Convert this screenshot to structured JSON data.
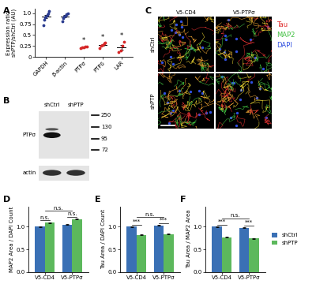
{
  "chart_data": [
    {
      "type": "scatter",
      "panel_label": "A",
      "y_label": "Expression ratio\nshPTP/shCtrl (AU)",
      "categories": [
        "GAPDH",
        "β-actin",
        "PTPσ",
        "PTPδ",
        "LAR"
      ],
      "points": [
        [
          0.72,
          0.85,
          0.9,
          0.93,
          0.97,
          1.0,
          1.05
        ],
        [
          0.82,
          0.88,
          0.92,
          0.95,
          0.98,
          1.0
        ],
        [
          0.2,
          0.21,
          0.22,
          0.23,
          0.24
        ],
        [
          0.2,
          0.25,
          0.27,
          0.3,
          0.32
        ],
        [
          0.1,
          0.15,
          0.25,
          0.35
        ]
      ],
      "means": [
        0.92,
        0.93,
        0.22,
        0.27,
        0.22
      ],
      "errors": [
        0.04,
        0.03,
        0.01,
        0.02,
        0.06
      ],
      "colors": [
        "#2a3b8f",
        "#2a3b8f",
        "#d62728",
        "#d62728",
        "#d62728"
      ],
      "marks": [
        null,
        null,
        "*",
        "*",
        "*"
      ],
      "ylim": [
        0,
        1.1
      ],
      "yticks": [
        0,
        0.25,
        0.5,
        0.75,
        {
          "value": 1,
          "label": "1.0"
        }
      ]
    },
    {
      "type": "bar",
      "panel_label": "D",
      "y_label": "MAP2 Area / DAPI Count",
      "categories": [
        "V5-CD4",
        "V5-PTPσ"
      ],
      "series": [
        {
          "name": "shCtrl",
          "color": "#3a70b5",
          "values": [
            1.0,
            1.05
          ],
          "errors": [
            0.01,
            0.01
          ]
        },
        {
          "name": "shPTP",
          "color": "#5cb85c",
          "values": [
            1.09,
            1.17
          ],
          "errors": [
            0.01,
            0.01
          ]
        }
      ],
      "pair_marks": [
        "n.s.",
        "n.s."
      ],
      "bracket_mark": "n.s.",
      "ylim": [
        0,
        1.45
      ],
      "yticks": [
        {
          "value": 0,
          "label": "0.0"
        },
        0.5,
        {
          "value": 1,
          "label": "1.0"
        }
      ]
    },
    {
      "type": "bar",
      "panel_label": "E",
      "y_label": "Tau Area / DAPI Count",
      "categories": [
        "V5-CD4",
        "V5-PTPσ"
      ],
      "series": [
        {
          "name": "shCtrl",
          "color": "#3a70b5",
          "values": [
            1.0,
            1.03
          ],
          "errors": [
            0.01,
            0.01
          ]
        },
        {
          "name": "shPTP",
          "color": "#5cb85c",
          "values": [
            0.82,
            0.84
          ],
          "errors": [
            0.01,
            0.01
          ]
        }
      ],
      "pair_marks": [
        "***",
        "***"
      ],
      "bracket_mark": "n.s.",
      "ylim": [
        0,
        1.45
      ],
      "yticks": [
        {
          "value": 0,
          "label": "0.0"
        },
        0.5,
        {
          "value": 1,
          "label": "1.0"
        }
      ]
    },
    {
      "type": "bar",
      "panel_label": "F",
      "y_label": "Tau Area / MAP2 Area",
      "categories": [
        "V5-CD4",
        "V5-PTPσ"
      ],
      "series": [
        {
          "name": "shCtrl",
          "color": "#3a70b5",
          "values": [
            1.0,
            0.98
          ],
          "errors": [
            0.01,
            0.01
          ]
        },
        {
          "name": "shPTP",
          "color": "#5cb85c",
          "values": [
            0.77,
            0.74
          ],
          "errors": [
            0.01,
            0.01
          ]
        }
      ],
      "pair_marks": [
        "***",
        "***"
      ],
      "bracket_mark": "n.s.",
      "legend": "right",
      "ylim": [
        0,
        1.45
      ],
      "yticks": [
        {
          "value": 0,
          "label": "0.0"
        },
        0.5,
        {
          "value": 1,
          "label": "1.0"
        }
      ]
    }
  ],
  "blot": {
    "panel_label": "B",
    "lanes": [
      "shCtrl",
      "shPTP"
    ],
    "rows": [
      {
        "label": "PTPσ"
      },
      {
        "label": "actin"
      }
    ],
    "markers": [
      250,
      130,
      95,
      72
    ]
  },
  "micrographs": {
    "panel_label": "C",
    "columns": [
      "V5-CD4",
      "V5-PTPσ"
    ],
    "rows": [
      "shCtrl",
      "shPTP"
    ],
    "channels": [
      {
        "name": "Tau",
        "color": "#e03030"
      },
      {
        "name": "MAP2",
        "color": "#40c040"
      },
      {
        "name": "DAPI",
        "color": "#3050e0"
      }
    ]
  }
}
